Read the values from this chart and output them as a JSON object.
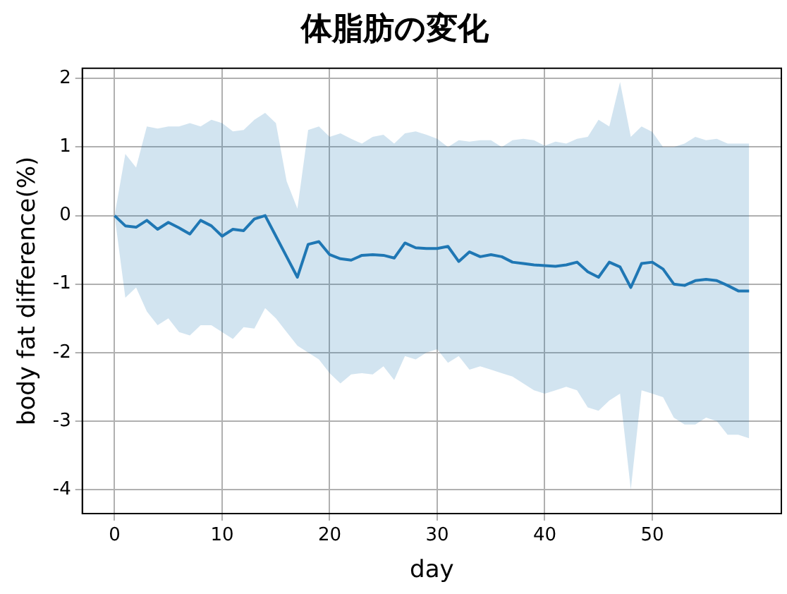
{
  "chart_data": {
    "type": "line",
    "title": "体脂肪の変化",
    "xlabel": "day",
    "ylabel": "body fat difference(%)",
    "x": [
      0,
      1,
      2,
      3,
      4,
      5,
      6,
      7,
      8,
      9,
      10,
      11,
      12,
      13,
      14,
      15,
      16,
      17,
      18,
      19,
      20,
      21,
      22,
      23,
      24,
      25,
      26,
      27,
      28,
      29,
      30,
      31,
      32,
      33,
      34,
      35,
      36,
      37,
      38,
      39,
      40,
      41,
      42,
      43,
      44,
      45,
      46,
      47,
      48,
      49,
      50,
      51,
      52,
      53,
      54,
      55,
      56,
      57,
      58,
      59
    ],
    "series": [
      {
        "color": "#1f77b4",
        "values": [
          0,
          -0.15,
          -0.17,
          -0.07,
          -0.2,
          -0.1,
          -0.18,
          -0.27,
          -0.07,
          -0.15,
          -0.3,
          -0.2,
          -0.22,
          -0.05,
          0,
          -0.3,
          -0.6,
          -0.9,
          -0.42,
          -0.38,
          -0.57,
          -0.63,
          -0.65,
          -0.58,
          -0.57,
          -0.58,
          -0.62,
          -0.4,
          -0.47,
          -0.48,
          -0.48,
          -0.45,
          -0.67,
          -0.53,
          -0.6,
          -0.57,
          -0.6,
          -0.68,
          -0.7,
          -0.72,
          -0.73,
          -0.74,
          -0.72,
          -0.68,
          -0.82,
          -0.9,
          -0.68,
          -0.75,
          -1.05,
          -0.7,
          -0.68,
          -0.78,
          -1.0,
          -1.02,
          -0.95,
          -0.93,
          -0.95,
          -1.02,
          -1.1,
          -1.1
        ],
        "upper": [
          0,
          0.9,
          0.7,
          1.3,
          1.27,
          1.3,
          1.3,
          1.35,
          1.3,
          1.4,
          1.35,
          1.23,
          1.25,
          1.4,
          1.5,
          1.35,
          0.5,
          0.1,
          1.25,
          1.3,
          1.15,
          1.2,
          1.12,
          1.05,
          1.15,
          1.18,
          1.05,
          1.2,
          1.23,
          1.18,
          1.12,
          1.0,
          1.1,
          1.08,
          1.1,
          1.1,
          1.0,
          1.1,
          1.12,
          1.1,
          1.02,
          1.08,
          1.05,
          1.12,
          1.15,
          1.4,
          1.3,
          1.95,
          1.15,
          1.3,
          1.22,
          1.0,
          1.0,
          1.05,
          1.15,
          1.1,
          1.12,
          1.05,
          1.05,
          1.05
        ],
        "lower": [
          0,
          -1.2,
          -1.05,
          -1.4,
          -1.6,
          -1.5,
          -1.7,
          -1.75,
          -1.6,
          -1.6,
          -1.7,
          -1.8,
          -1.63,
          -1.65,
          -1.35,
          -1.5,
          -1.7,
          -1.9,
          -2.0,
          -2.1,
          -2.3,
          -2.45,
          -2.32,
          -2.3,
          -2.32,
          -2.2,
          -2.4,
          -2.05,
          -2.1,
          -2.0,
          -1.95,
          -2.15,
          -2.05,
          -2.25,
          -2.2,
          -2.25,
          -2.3,
          -2.35,
          -2.45,
          -2.55,
          -2.6,
          -2.55,
          -2.5,
          -2.55,
          -2.8,
          -2.85,
          -2.7,
          -2.6,
          -4.0,
          -2.55,
          -2.6,
          -2.65,
          -2.95,
          -3.05,
          -3.05,
          -2.95,
          -3.0,
          -3.2,
          -3.2,
          -3.25
        ]
      }
    ],
    "xlim": [
      -3,
      62
    ],
    "xticks": [
      0,
      10,
      20,
      30,
      40,
      50
    ],
    "ylim": [
      -4.35,
      2.15
    ],
    "yticks": [
      -4,
      -3,
      -2,
      -1,
      0,
      1,
      2
    ],
    "grid": true,
    "legend": false,
    "marker": "none",
    "line_style": "solid"
  }
}
